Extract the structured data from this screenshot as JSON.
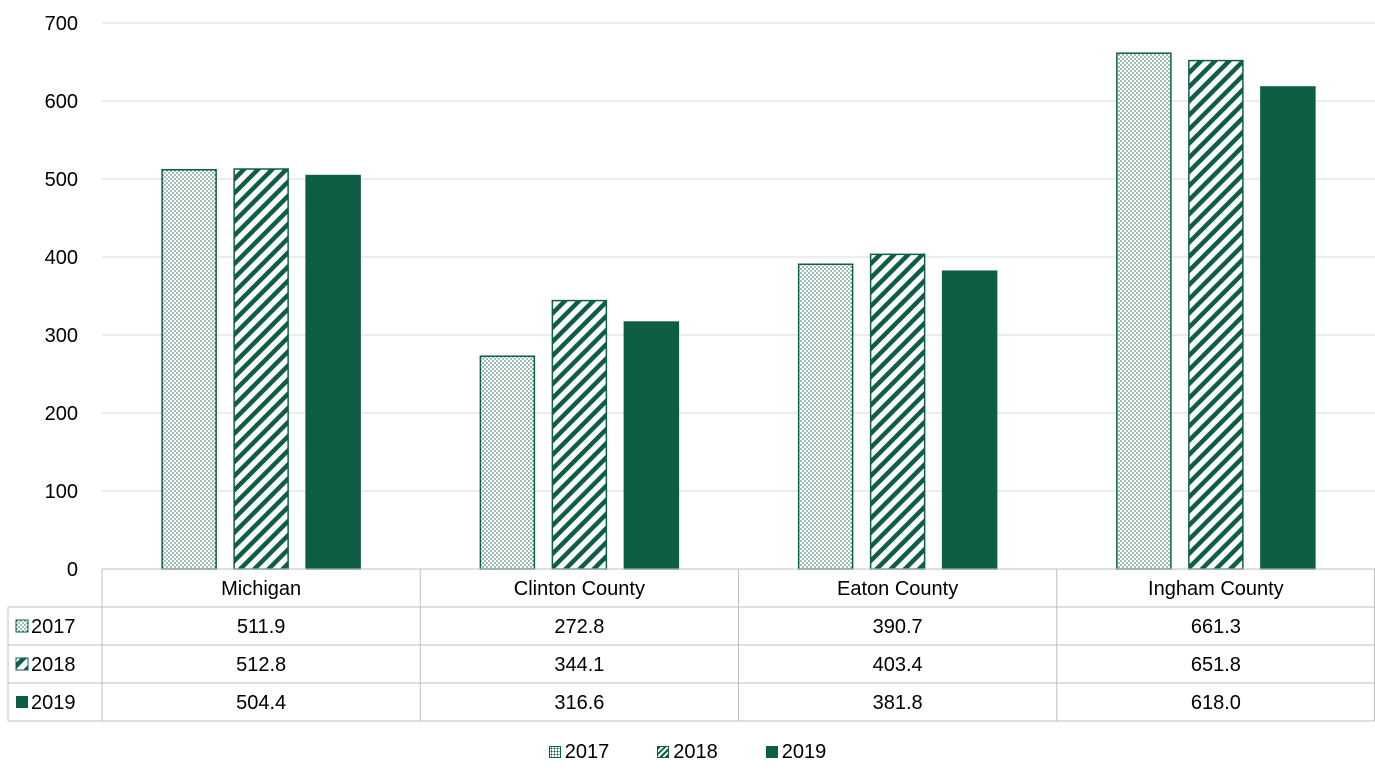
{
  "chart_data": {
    "type": "bar",
    "categories": [
      "Michigan",
      "Clinton County",
      "Eaton County",
      "Ingham County"
    ],
    "series": [
      {
        "name": "2017",
        "values": [
          511.9,
          272.8,
          390.7,
          661.3
        ],
        "pattern": "dots"
      },
      {
        "name": "2018",
        "values": [
          512.8,
          344.1,
          403.4,
          651.8
        ],
        "pattern": "hatch"
      },
      {
        "name": "2019",
        "values": [
          504.4,
          316.6,
          381.8,
          618.0
        ],
        "pattern": "solid"
      }
    ],
    "table_values": [
      [
        "511.9",
        "272.8",
        "390.7",
        "661.3"
      ],
      [
        "512.8",
        "344.1",
        "403.4",
        "651.8"
      ],
      [
        "504.4",
        "316.6",
        "381.8",
        "618.0"
      ]
    ],
    "ylim": [
      0,
      700
    ],
    "yticks": [
      "0",
      "100",
      "200",
      "300",
      "400",
      "500",
      "600",
      "700"
    ],
    "grid": true,
    "legend_position": "bottom",
    "data_table": true,
    "title": "",
    "xlabel": "",
    "ylabel": ""
  },
  "colors": {
    "series": "#0E5E45",
    "grid": "#D9D9D9",
    "table_border": "#BFBFBF"
  },
  "legend": {
    "items": [
      "2017",
      "2018",
      "2019"
    ]
  }
}
